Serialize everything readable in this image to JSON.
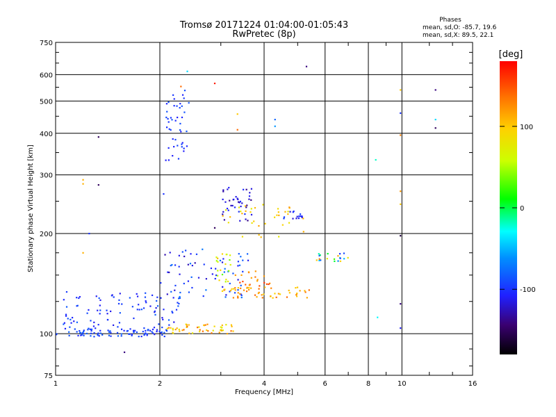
{
  "header": {
    "title": "Tromsø 20171224 01:04:00-01:05:43",
    "subtitle": "RwPretec (8p)"
  },
  "stats": {
    "heading": "Phases",
    "line_o": "mean, sd,O: -85.7, 19.6",
    "line_x": "mean, sd,X:  89.5, 22.1"
  },
  "colorbar": {
    "label": "[deg]",
    "range": [
      -180,
      180
    ],
    "ticks": [
      {
        "value": 100,
        "label": "100"
      },
      {
        "value": 0,
        "label": "0"
      },
      {
        "value": -100,
        "label": "-100"
      }
    ]
  },
  "chart_data": {
    "type": "scatter",
    "xlabel": "Frequency [MHz]",
    "ylabel": "Stationary phase Virtual Height [km]",
    "xscale": "log",
    "yscale": "log",
    "xlim": [
      1,
      16
    ],
    "ylim": [
      75,
      750
    ],
    "grid": true,
    "color_scale": "phase [deg], rainbow",
    "xticks": [
      {
        "value": 1,
        "label": "1"
      },
      {
        "value": 2,
        "label": "2"
      },
      {
        "value": 4,
        "label": "4"
      },
      {
        "value": 6,
        "label": "6"
      },
      {
        "value": 8,
        "label": "8"
      },
      {
        "value": 10,
        "label": "10"
      },
      {
        "value": 16,
        "label": "16"
      }
    ],
    "yticks": [
      {
        "value": 75,
        "label": "75"
      },
      {
        "value": 100,
        "label": "100"
      },
      {
        "value": 200,
        "label": "200"
      },
      {
        "value": 300,
        "label": "300"
      },
      {
        "value": 400,
        "label": "400"
      },
      {
        "value": 500,
        "label": "500"
      },
      {
        "value": 600,
        "label": "600"
      },
      {
        "value": 750,
        "label": "750"
      }
    ],
    "clusters": [
      {
        "freq_range": [
          1.0,
          2.1
        ],
        "height_range": [
          98,
          104
        ],
        "phase_range": [
          -110,
          -80
        ],
        "n": 90
      },
      {
        "freq_range": [
          1.05,
          2.3
        ],
        "height_range": [
          104,
          135
        ],
        "phase_range": [
          -115,
          -80
        ],
        "n": 90
      },
      {
        "freq_range": [
          2.0,
          3.6
        ],
        "height_range": [
          128,
          180
        ],
        "phase_range": [
          -130,
          -70
        ],
        "n": 70
      },
      {
        "freq_range": [
          2.08,
          2.45
        ],
        "height_range": [
          330,
          550
        ],
        "phase_range": [
          -110,
          -85
        ],
        "n": 45
      },
      {
        "freq_range": [
          3.0,
          3.7
        ],
        "height_range": [
          218,
          275
        ],
        "phase_range": [
          -140,
          -100
        ],
        "n": 40
      },
      {
        "freq_range": [
          4.5,
          5.2
        ],
        "height_range": [
          218,
          235
        ],
        "phase_range": [
          -120,
          -90
        ],
        "n": 15
      },
      {
        "freq_range": [
          2.1,
          3.3
        ],
        "height_range": [
          100,
          107
        ],
        "phase_range": [
          70,
          140
        ],
        "n": 50
      },
      {
        "freq_range": [
          3.0,
          5.5
        ],
        "height_range": [
          128,
          138
        ],
        "phase_range": [
          90,
          140
        ],
        "n": 50
      },
      {
        "freq_range": [
          3.0,
          5.2
        ],
        "height_range": [
          195,
          245
        ],
        "phase_range": [
          70,
          120
        ],
        "n": 35
      },
      {
        "freq_range": [
          3.3,
          4.2
        ],
        "height_range": [
          135,
          155
        ],
        "phase_range": [
          100,
          160
        ],
        "n": 25
      },
      {
        "freq_range": [
          5.6,
          7.0
        ],
        "height_range": [
          165,
          175
        ],
        "phase_range": [
          -110,
          140
        ],
        "n": 20
      },
      {
        "freq_range": [
          2.9,
          3.2
        ],
        "height_range": [
          140,
          175
        ],
        "phase_range": [
          30,
          110
        ],
        "n": 20
      }
    ],
    "points": [
      {
        "x": 1.33,
        "y": 390,
        "phase": -150
      },
      {
        "x": 1.33,
        "y": 280,
        "phase": -150
      },
      {
        "x": 1.2,
        "y": 290,
        "phase": 110
      },
      {
        "x": 1.2,
        "y": 282,
        "phase": 110
      },
      {
        "x": 1.2,
        "y": 175,
        "phase": 110
      },
      {
        "x": 1.25,
        "y": 200,
        "phase": -100
      },
      {
        "x": 1.58,
        "y": 88,
        "phase": -140
      },
      {
        "x": 2.05,
        "y": 263,
        "phase": -100
      },
      {
        "x": 2.4,
        "y": 614,
        "phase": -40
      },
      {
        "x": 2.3,
        "y": 553,
        "phase": 140
      },
      {
        "x": 2.88,
        "y": 565,
        "phase": 170
      },
      {
        "x": 2.88,
        "y": 208,
        "phase": -150
      },
      {
        "x": 3.35,
        "y": 457,
        "phase": 100
      },
      {
        "x": 3.35,
        "y": 410,
        "phase": 140
      },
      {
        "x": 4.3,
        "y": 440,
        "phase": -80
      },
      {
        "x": 4.3,
        "y": 420,
        "phase": -60
      },
      {
        "x": 5.3,
        "y": 635,
        "phase": -140
      },
      {
        "x": 8.4,
        "y": 333,
        "phase": -20
      },
      {
        "x": 8.5,
        "y": 112,
        "phase": -30
      },
      {
        "x": 9.9,
        "y": 540,
        "phase": 100
      },
      {
        "x": 9.9,
        "y": 395,
        "phase": 130
      },
      {
        "x": 9.9,
        "y": 268,
        "phase": 120
      },
      {
        "x": 9.9,
        "y": 245,
        "phase": 100
      },
      {
        "x": 9.9,
        "y": 460,
        "phase": -100
      },
      {
        "x": 9.9,
        "y": 197,
        "phase": -160
      },
      {
        "x": 9.9,
        "y": 123,
        "phase": -140
      },
      {
        "x": 9.9,
        "y": 104,
        "phase": -110
      },
      {
        "x": 12.5,
        "y": 540,
        "phase": -140
      },
      {
        "x": 12.5,
        "y": 440,
        "phase": -40
      },
      {
        "x": 12.5,
        "y": 415,
        "phase": -150
      }
    ]
  }
}
